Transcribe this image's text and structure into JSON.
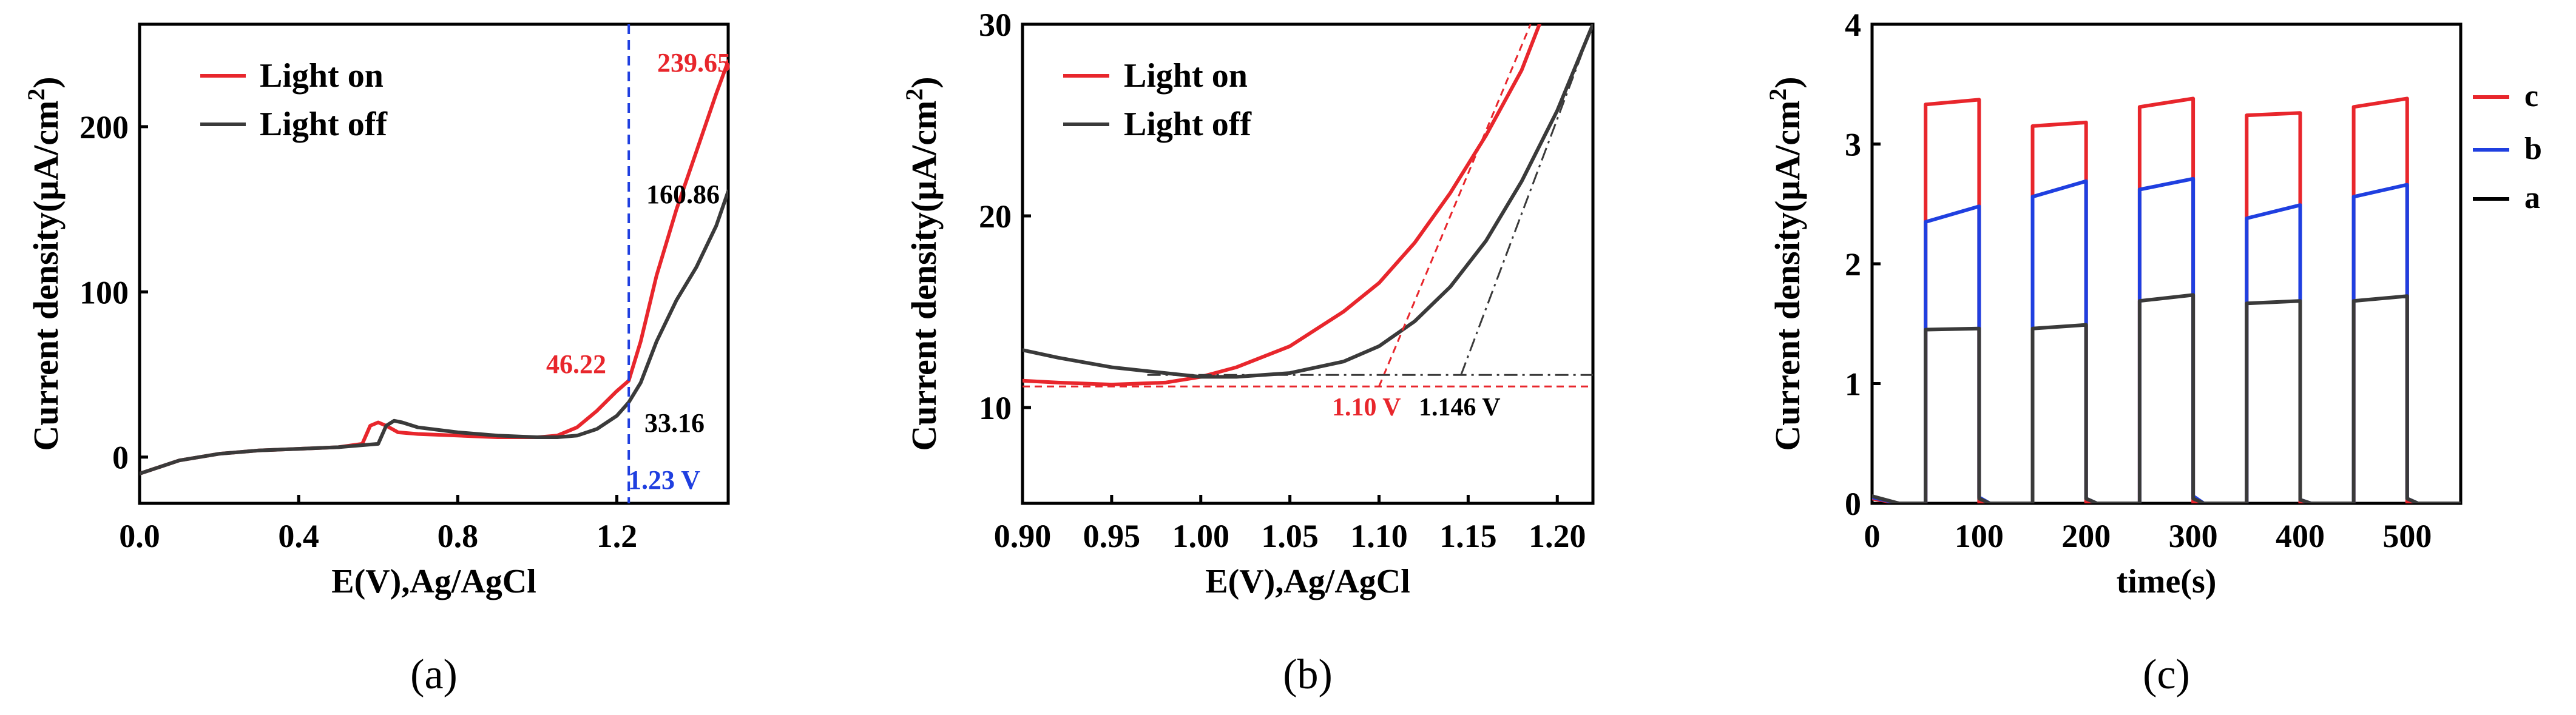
{
  "colors": {
    "red": "#e8262c",
    "black": "#3a3a3a",
    "blue": "#1f3fe0",
    "axis": "#000000"
  },
  "chart_data": [
    {
      "id": "a",
      "type": "line",
      "panel_label": "(a)",
      "xlabel": "E(V),Ag/AgCl",
      "ylabel": "Current density(μA/cm²)",
      "ylabel_main": "Current density",
      "ylabel_unit": "(μA/cm",
      "ylabel_sup": "2",
      "ylabel_close": ")",
      "xlim": [
        0.0,
        1.48
      ],
      "ylim": [
        -28,
        262
      ],
      "xticks": [
        0.0,
        0.4,
        0.8,
        1.2
      ],
      "xtick_labels": [
        "0.0",
        "0.4",
        "0.8",
        "1.2"
      ],
      "yticks": [
        0,
        100,
        200
      ],
      "ytick_labels": [
        "0",
        "100",
        "200"
      ],
      "legend": [
        "Light on",
        "Light off"
      ],
      "series": [
        {
          "name": "Light on",
          "color": "red",
          "x": [
            0.0,
            0.05,
            0.1,
            0.2,
            0.3,
            0.4,
            0.5,
            0.56,
            0.58,
            0.6,
            0.62,
            0.65,
            0.7,
            0.8,
            0.9,
            1.0,
            1.05,
            1.1,
            1.15,
            1.2,
            1.23,
            1.26,
            1.3,
            1.35,
            1.4,
            1.45,
            1.48
          ],
          "y": [
            -10,
            -6,
            -2,
            2,
            4,
            5,
            6,
            8,
            19,
            21,
            19,
            15,
            14,
            13,
            12,
            12,
            13,
            18,
            28,
            40,
            46.22,
            70,
            110,
            150,
            185,
            220,
            239.65
          ]
        },
        {
          "name": "Light off",
          "color": "black",
          "x": [
            0.0,
            0.05,
            0.1,
            0.2,
            0.3,
            0.4,
            0.5,
            0.6,
            0.62,
            0.64,
            0.66,
            0.7,
            0.8,
            0.9,
            1.0,
            1.05,
            1.1,
            1.15,
            1.2,
            1.23,
            1.26,
            1.3,
            1.35,
            1.4,
            1.45,
            1.48
          ],
          "y": [
            -10,
            -6,
            -2,
            2,
            4,
            5,
            6,
            8,
            19,
            22,
            21,
            18,
            15,
            13,
            12,
            12,
            13,
            17,
            25,
            33.16,
            45,
            70,
            95,
            115,
            140,
            160.86
          ]
        }
      ],
      "vline": {
        "x": 1.23,
        "color": "blue",
        "label": "1.23 V"
      },
      "annotations": [
        {
          "text": "239.65",
          "color": "red"
        },
        {
          "text": "160.86",
          "color": "black"
        },
        {
          "text": "46.22",
          "color": "red"
        },
        {
          "text": "33.16",
          "color": "black"
        }
      ]
    },
    {
      "id": "b",
      "type": "line",
      "panel_label": "(b)",
      "xlabel": "E(V),Ag/AgCl",
      "ylabel": "Current density(μA/cm²)",
      "ylabel_main": "Current density",
      "ylabel_unit": "(μA/cm",
      "ylabel_sup": "2",
      "ylabel_close": ")",
      "xlim": [
        0.9,
        1.22
      ],
      "ylim": [
        5,
        30
      ],
      "xticks": [
        0.9,
        0.95,
        1.0,
        1.05,
        1.1,
        1.15,
        1.2
      ],
      "xtick_labels": [
        "0.90",
        "0.95",
        "1.00",
        "1.05",
        "1.10",
        "1.15",
        "1.20"
      ],
      "yticks": [
        10,
        20,
        30
      ],
      "ytick_labels": [
        "10",
        "20",
        "30"
      ],
      "legend": [
        "Light on",
        "Light off"
      ],
      "series": [
        {
          "name": "Light on",
          "color": "red",
          "x": [
            0.9,
            0.92,
            0.95,
            0.98,
            1.0,
            1.02,
            1.05,
            1.08,
            1.1,
            1.12,
            1.14,
            1.16,
            1.18,
            1.19
          ],
          "y": [
            11.4,
            11.3,
            11.2,
            11.3,
            11.6,
            12.1,
            13.2,
            15.0,
            16.5,
            18.6,
            21.2,
            24.2,
            27.6,
            30.0
          ]
        },
        {
          "name": "Light off",
          "color": "black",
          "x": [
            0.9,
            0.92,
            0.95,
            0.98,
            1.0,
            1.02,
            1.05,
            1.08,
            1.1,
            1.12,
            1.14,
            1.16,
            1.18,
            1.2,
            1.22
          ],
          "y": [
            13.0,
            12.6,
            12.1,
            11.8,
            11.6,
            11.6,
            11.8,
            12.4,
            13.2,
            14.5,
            16.3,
            18.7,
            21.8,
            25.5,
            30.0
          ]
        }
      ],
      "tangents": [
        {
          "color": "red",
          "style": "dashed",
          "x": [
            0.9,
            1.22
          ],
          "y": [
            11.1,
            11.1
          ]
        },
        {
          "color": "red",
          "style": "dashed",
          "x": [
            1.1,
            1.185
          ],
          "y": [
            11.1,
            30.0
          ]
        },
        {
          "color": "black",
          "style": "dashdot",
          "x": [
            0.97,
            1.22
          ],
          "y": [
            11.7,
            11.7
          ]
        },
        {
          "color": "black",
          "style": "dashdot",
          "x": [
            1.146,
            1.22
          ],
          "y": [
            11.7,
            30.0
          ]
        }
      ],
      "annotations": [
        {
          "text": "1.10 V",
          "color": "red"
        },
        {
          "text": "1.146 V",
          "color": "black"
        }
      ]
    },
    {
      "id": "c",
      "type": "line",
      "panel_label": "(c)",
      "xlabel": "time(s)",
      "ylabel": "Current density(μA/cm²)",
      "ylabel_main": "Current density",
      "ylabel_unit": "(μA/cm",
      "ylabel_sup": "2",
      "ylabel_close": ")",
      "xlim": [
        0,
        550
      ],
      "ylim": [
        0,
        4
      ],
      "xticks": [
        0,
        100,
        200,
        300,
        400,
        500
      ],
      "xtick_labels": [
        "0",
        "100",
        "200",
        "300",
        "400",
        "500"
      ],
      "yticks": [
        0,
        1,
        2,
        3,
        4
      ],
      "ytick_labels": [
        "0",
        "1",
        "2",
        "3",
        "4"
      ],
      "legend": [
        "c",
        "b",
        "a"
      ],
      "series": [
        {
          "name": "c",
          "color": "red",
          "x": [
            0,
            25,
            50,
            50,
            100,
            100,
            105,
            150,
            150,
            200,
            200,
            205,
            250,
            250,
            300,
            300,
            305,
            350,
            350,
            400,
            400,
            405,
            450,
            450,
            500,
            500,
            505,
            550
          ],
          "y": [
            0.04,
            0,
            0,
            3.33,
            3.37,
            0,
            0,
            0,
            3.15,
            3.18,
            0,
            0,
            0,
            3.31,
            3.38,
            0,
            0,
            0,
            3.24,
            3.26,
            0,
            0,
            0,
            3.31,
            3.38,
            0,
            0,
            0
          ]
        },
        {
          "name": "b",
          "color": "blue",
          "x": [
            0,
            25,
            50,
            50,
            100,
            100,
            110,
            150,
            150,
            200,
            200,
            210,
            250,
            250,
            300,
            300,
            310,
            350,
            350,
            400,
            400,
            410,
            450,
            450,
            500,
            500,
            510,
            550
          ],
          "y": [
            0.05,
            0,
            0,
            2.35,
            2.48,
            0.05,
            0,
            0,
            2.56,
            2.69,
            0.04,
            0,
            0,
            2.62,
            2.71,
            0.06,
            0,
            0,
            2.38,
            2.49,
            0.03,
            0,
            0,
            2.56,
            2.66,
            0.04,
            0,
            0
          ]
        },
        {
          "name": "a",
          "color": "black",
          "x": [
            0,
            25,
            50,
            50,
            100,
            100,
            110,
            150,
            150,
            200,
            200,
            210,
            250,
            250,
            300,
            300,
            310,
            350,
            350,
            400,
            400,
            410,
            450,
            450,
            500,
            500,
            510,
            550
          ],
          "y": [
            0.06,
            0,
            0,
            1.45,
            1.46,
            0.04,
            0,
            0,
            1.46,
            1.49,
            0.04,
            0,
            0,
            1.69,
            1.74,
            0.04,
            0,
            0,
            1.67,
            1.69,
            0.03,
            0,
            0,
            1.69,
            1.73,
            0.04,
            0,
            0
          ]
        }
      ]
    }
  ]
}
